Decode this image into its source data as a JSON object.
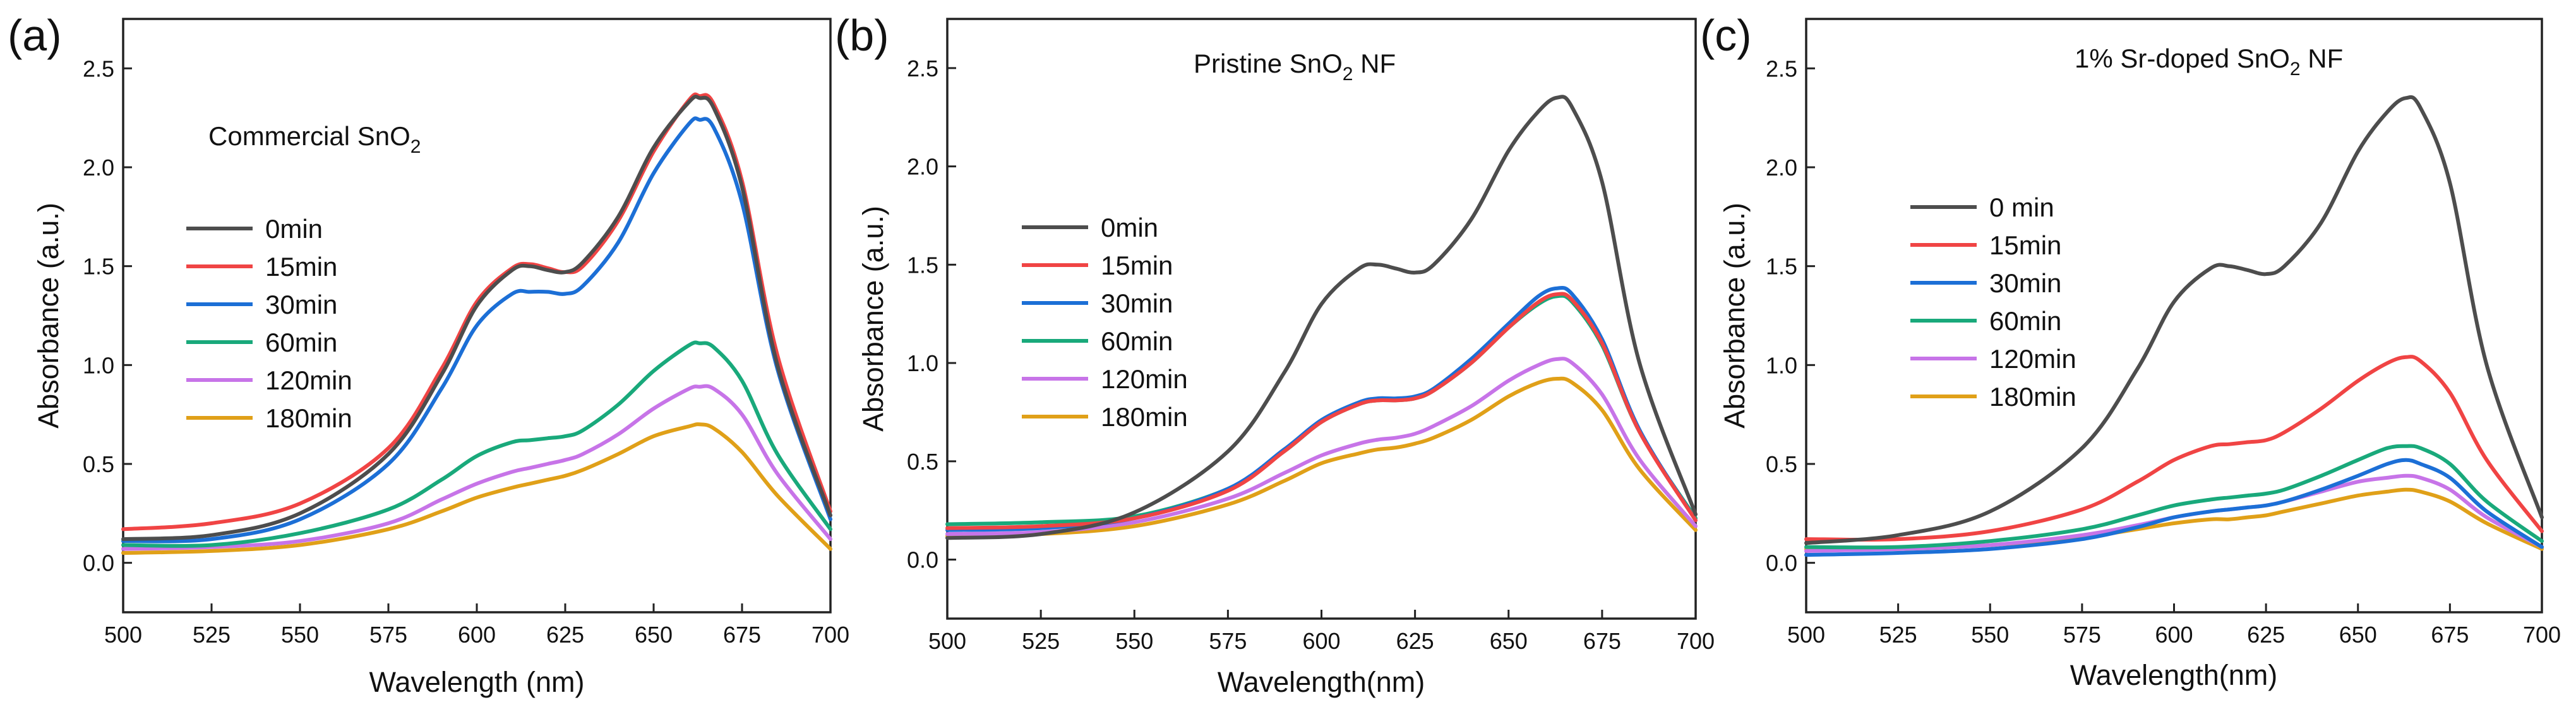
{
  "figure": {
    "background": "#ffffff"
  },
  "chart_data": [
    {
      "type": "line",
      "panel_label": "(a)",
      "title": "Commercial SnO",
      "title_sub": "2",
      "title_suffix": "",
      "xlabel": "Wavelength (nm)",
      "ylabel": "Absorbance (a.u.)",
      "xlim": [
        500,
        700
      ],
      "ylim": [
        -0.25,
        2.75
      ],
      "xticks": [
        500,
        525,
        550,
        575,
        600,
        625,
        650,
        675,
        700
      ],
      "yticks": [
        0.0,
        0.5,
        1.0,
        1.5,
        2.0,
        2.5
      ],
      "ytick_labels": [
        "0.0",
        "0.5",
        "1.0",
        "1.5",
        "2.0",
        "2.5"
      ],
      "legend_position": "upper-left",
      "grid": false,
      "series": [
        {
          "name": "0min",
          "color": "#4d4d4d",
          "x": [
            500,
            525,
            550,
            575,
            590,
            600,
            610,
            615,
            620,
            625,
            630,
            640,
            650,
            660,
            663,
            667,
            675,
            685,
            700
          ],
          "y": [
            0.12,
            0.14,
            0.25,
            0.55,
            0.95,
            1.3,
            1.48,
            1.5,
            1.48,
            1.47,
            1.52,
            1.75,
            2.1,
            2.33,
            2.35,
            2.3,
            1.9,
            1.0,
            0.24
          ]
        },
        {
          "name": "15min",
          "color": "#f04444",
          "x": [
            500,
            525,
            550,
            575,
            590,
            600,
            610,
            615,
            620,
            625,
            630,
            640,
            650,
            660,
            663,
            667,
            675,
            685,
            700
          ],
          "y": [
            0.17,
            0.2,
            0.3,
            0.58,
            0.98,
            1.32,
            1.49,
            1.51,
            1.49,
            1.47,
            1.5,
            1.73,
            2.08,
            2.34,
            2.36,
            2.32,
            1.93,
            1.05,
            0.26
          ]
        },
        {
          "name": "30min",
          "color": "#1c6fd6",
          "x": [
            500,
            525,
            550,
            575,
            590,
            600,
            610,
            615,
            620,
            625,
            630,
            640,
            650,
            660,
            663,
            667,
            675,
            685,
            700
          ],
          "y": [
            0.11,
            0.12,
            0.22,
            0.5,
            0.88,
            1.2,
            1.36,
            1.37,
            1.37,
            1.36,
            1.4,
            1.62,
            1.97,
            2.22,
            2.24,
            2.2,
            1.82,
            0.98,
            0.22
          ]
        },
        {
          "name": "60min",
          "color": "#19a97b",
          "x": [
            500,
            525,
            550,
            575,
            590,
            600,
            610,
            615,
            620,
            625,
            630,
            640,
            650,
            660,
            663,
            667,
            675,
            685,
            700
          ],
          "y": [
            0.09,
            0.09,
            0.15,
            0.27,
            0.42,
            0.54,
            0.61,
            0.62,
            0.63,
            0.64,
            0.67,
            0.8,
            0.97,
            1.1,
            1.11,
            1.09,
            0.92,
            0.55,
            0.17
          ]
        },
        {
          "name": "120min",
          "color": "#c774e8",
          "x": [
            500,
            525,
            550,
            575,
            590,
            600,
            610,
            615,
            620,
            625,
            630,
            640,
            650,
            660,
            663,
            667,
            675,
            685,
            700
          ],
          "y": [
            0.07,
            0.08,
            0.11,
            0.2,
            0.32,
            0.4,
            0.46,
            0.48,
            0.5,
            0.52,
            0.55,
            0.65,
            0.78,
            0.88,
            0.89,
            0.88,
            0.75,
            0.45,
            0.12
          ]
        },
        {
          "name": "180min",
          "color": "#e0a018",
          "x": [
            500,
            525,
            550,
            575,
            590,
            600,
            610,
            615,
            620,
            625,
            630,
            640,
            650,
            660,
            663,
            667,
            675,
            685,
            700
          ],
          "y": [
            0.05,
            0.06,
            0.09,
            0.17,
            0.26,
            0.33,
            0.38,
            0.4,
            0.42,
            0.44,
            0.47,
            0.55,
            0.64,
            0.69,
            0.7,
            0.68,
            0.56,
            0.34,
            0.07
          ]
        }
      ]
    },
    {
      "type": "line",
      "panel_label": "(b)",
      "title": "Pristine SnO",
      "title_sub": "2",
      "title_suffix": " NF",
      "xlabel": "Wavelength(nm)",
      "ylabel": "Absorbance (a.u.)",
      "xlim": [
        500,
        700
      ],
      "ylim": [
        -0.3,
        2.75
      ],
      "xticks": [
        500,
        525,
        550,
        575,
        600,
        625,
        650,
        675,
        700
      ],
      "yticks": [
        0.0,
        0.5,
        1.0,
        1.5,
        2.0,
        2.5
      ],
      "ytick_labels": [
        "0.0",
        "0.5",
        "1.0",
        "1.5",
        "2.0",
        "2.5"
      ],
      "legend_position": "upper-left",
      "grid": false,
      "series": [
        {
          "name": "0min",
          "color": "#4d4d4d",
          "x": [
            500,
            525,
            550,
            575,
            590,
            600,
            610,
            615,
            620,
            625,
            630,
            640,
            650,
            658,
            663,
            667,
            675,
            685,
            700
          ],
          "y": [
            0.11,
            0.13,
            0.24,
            0.55,
            0.95,
            1.3,
            1.48,
            1.5,
            1.48,
            1.46,
            1.5,
            1.73,
            2.08,
            2.28,
            2.35,
            2.3,
            1.92,
            1.0,
            0.23
          ]
        },
        {
          "name": "15min",
          "color": "#f04444",
          "x": [
            500,
            525,
            550,
            575,
            590,
            600,
            610,
            615,
            620,
            625,
            630,
            640,
            650,
            658,
            663,
            667,
            675,
            685,
            700
          ],
          "y": [
            0.16,
            0.17,
            0.21,
            0.35,
            0.55,
            0.7,
            0.79,
            0.81,
            0.81,
            0.82,
            0.86,
            1.0,
            1.18,
            1.31,
            1.35,
            1.32,
            1.1,
            0.65,
            0.2
          ]
        },
        {
          "name": "30min",
          "color": "#1c6fd6",
          "x": [
            500,
            525,
            550,
            575,
            590,
            600,
            610,
            615,
            620,
            625,
            630,
            640,
            650,
            658,
            663,
            667,
            675,
            685,
            700
          ],
          "y": [
            0.15,
            0.16,
            0.21,
            0.36,
            0.56,
            0.71,
            0.8,
            0.82,
            0.82,
            0.83,
            0.87,
            1.02,
            1.2,
            1.34,
            1.38,
            1.35,
            1.12,
            0.66,
            0.2
          ]
        },
        {
          "name": "60min",
          "color": "#19a97b",
          "x": [
            500,
            525,
            550,
            575,
            590,
            600,
            610,
            615,
            620,
            625,
            630,
            640,
            650,
            658,
            663,
            667,
            675,
            685,
            700
          ],
          "y": [
            0.18,
            0.19,
            0.22,
            0.36,
            0.55,
            0.7,
            0.79,
            0.81,
            0.81,
            0.82,
            0.86,
            1.0,
            1.18,
            1.3,
            1.34,
            1.31,
            1.09,
            0.65,
            0.21
          ]
        },
        {
          "name": "120min",
          "color": "#c774e8",
          "x": [
            500,
            525,
            550,
            575,
            590,
            600,
            610,
            615,
            620,
            625,
            630,
            640,
            650,
            658,
            663,
            667,
            675,
            685,
            700
          ],
          "y": [
            0.13,
            0.14,
            0.19,
            0.31,
            0.44,
            0.53,
            0.59,
            0.61,
            0.62,
            0.64,
            0.68,
            0.78,
            0.91,
            0.99,
            1.02,
            1.0,
            0.84,
            0.51,
            0.17
          ]
        },
        {
          "name": "180min",
          "color": "#e0a018",
          "x": [
            500,
            525,
            550,
            575,
            590,
            600,
            610,
            615,
            620,
            625,
            630,
            640,
            650,
            658,
            663,
            667,
            675,
            685,
            700
          ],
          "y": [
            0.12,
            0.13,
            0.17,
            0.28,
            0.4,
            0.49,
            0.54,
            0.56,
            0.57,
            0.59,
            0.62,
            0.71,
            0.83,
            0.9,
            0.92,
            0.9,
            0.76,
            0.46,
            0.15
          ]
        }
      ]
    },
    {
      "type": "line",
      "panel_label": "(c)",
      "title": "1% Sr-doped SnO",
      "title_sub": "2",
      "title_suffix": " NF",
      "xlabel": "Wavelength(nm)",
      "ylabel": "Absorbance (a.u.)",
      "xlim": [
        500,
        700
      ],
      "ylim": [
        -0.25,
        2.75
      ],
      "xticks": [
        500,
        525,
        550,
        575,
        600,
        625,
        650,
        675,
        700
      ],
      "yticks": [
        0.0,
        0.5,
        1.0,
        1.5,
        2.0,
        2.5
      ],
      "ytick_labels": [
        "0.0",
        "0.5",
        "1.0",
        "1.5",
        "2.0",
        "2.5"
      ],
      "legend_position": "upper-left",
      "grid": false,
      "series": [
        {
          "name": "0 min",
          "color": "#4d4d4d",
          "x": [
            500,
            525,
            550,
            575,
            590,
            600,
            610,
            615,
            620,
            625,
            630,
            640,
            650,
            658,
            663,
            667,
            675,
            685,
            700
          ],
          "y": [
            0.1,
            0.14,
            0.26,
            0.58,
            0.98,
            1.32,
            1.49,
            1.5,
            1.48,
            1.46,
            1.5,
            1.72,
            2.08,
            2.28,
            2.35,
            2.3,
            1.92,
            1.0,
            0.23
          ]
        },
        {
          "name": "15min",
          "color": "#f04444",
          "x": [
            500,
            525,
            550,
            575,
            590,
            600,
            610,
            615,
            620,
            625,
            630,
            640,
            650,
            658,
            663,
            667,
            675,
            685,
            700
          ],
          "y": [
            0.12,
            0.12,
            0.16,
            0.27,
            0.41,
            0.52,
            0.59,
            0.6,
            0.61,
            0.62,
            0.66,
            0.78,
            0.92,
            1.01,
            1.04,
            1.02,
            0.86,
            0.52,
            0.16
          ]
        },
        {
          "name": "30min",
          "color": "#1c6fd6",
          "x": [
            500,
            525,
            550,
            575,
            590,
            600,
            610,
            615,
            620,
            625,
            630,
            640,
            650,
            658,
            663,
            667,
            675,
            685,
            700
          ],
          "y": [
            0.04,
            0.05,
            0.07,
            0.12,
            0.18,
            0.23,
            0.26,
            0.27,
            0.28,
            0.29,
            0.31,
            0.37,
            0.44,
            0.5,
            0.52,
            0.5,
            0.43,
            0.26,
            0.08
          ]
        },
        {
          "name": "60min",
          "color": "#19a97b",
          "x": [
            500,
            525,
            550,
            575,
            590,
            600,
            610,
            615,
            620,
            625,
            630,
            640,
            650,
            658,
            663,
            667,
            675,
            685,
            700
          ],
          "y": [
            0.08,
            0.08,
            0.11,
            0.17,
            0.24,
            0.29,
            0.32,
            0.33,
            0.34,
            0.35,
            0.37,
            0.44,
            0.52,
            0.58,
            0.59,
            0.58,
            0.5,
            0.31,
            0.11
          ]
        },
        {
          "name": "120min",
          "color": "#c774e8",
          "x": [
            500,
            525,
            550,
            575,
            590,
            600,
            610,
            615,
            620,
            625,
            630,
            640,
            650,
            658,
            663,
            667,
            675,
            685,
            700
          ],
          "y": [
            0.06,
            0.07,
            0.09,
            0.14,
            0.19,
            0.23,
            0.26,
            0.27,
            0.28,
            0.29,
            0.31,
            0.36,
            0.41,
            0.43,
            0.44,
            0.43,
            0.37,
            0.23,
            0.08
          ]
        },
        {
          "name": "180min",
          "color": "#e0a018",
          "x": [
            500,
            525,
            550,
            575,
            590,
            600,
            610,
            615,
            620,
            625,
            630,
            640,
            650,
            658,
            663,
            667,
            675,
            685,
            700
          ],
          "y": [
            0.07,
            0.07,
            0.09,
            0.13,
            0.17,
            0.2,
            0.22,
            0.22,
            0.23,
            0.24,
            0.26,
            0.3,
            0.34,
            0.36,
            0.37,
            0.36,
            0.31,
            0.2,
            0.07
          ]
        }
      ]
    }
  ]
}
